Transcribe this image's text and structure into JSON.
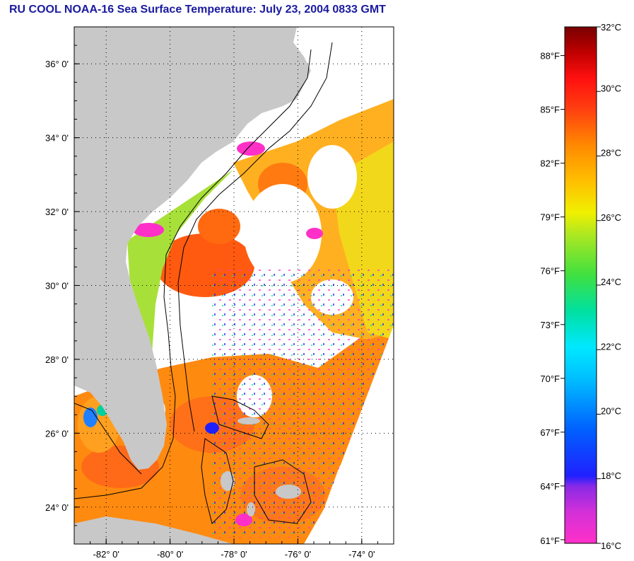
{
  "title": "RU COOL  NOAA-16  Sea Surface Temperature:  July 23, 2004 0833 GMT",
  "map": {
    "lon_range": [
      -83,
      -73
    ],
    "lat_range": [
      23,
      37
    ],
    "lat_ticks": [
      {
        "value": 36,
        "label": "36° 0'"
      },
      {
        "value": 34,
        "label": "34° 0'"
      },
      {
        "value": 32,
        "label": "32° 0'"
      },
      {
        "value": 30,
        "label": "30° 0'"
      },
      {
        "value": 28,
        "label": "28° 0'"
      },
      {
        "value": 26,
        "label": "26° 0'"
      },
      {
        "value": 24,
        "label": "24° 0'"
      }
    ],
    "lon_ticks": [
      {
        "value": -82,
        "label": "-82° 0'"
      },
      {
        "value": -80,
        "label": "-80° 0'"
      },
      {
        "value": -78,
        "label": "-78° 0'"
      },
      {
        "value": -76,
        "label": "-76° 0'"
      },
      {
        "value": -74,
        "label": "-74° 0'"
      }
    ],
    "colors": {
      "land": "#c8c8c8",
      "cloud": "#ffffff",
      "frame": "#000000"
    }
  },
  "colorbar": {
    "celsius_labels": [
      "32°C",
      "30°C",
      "28°C",
      "26°C",
      "24°C",
      "22°C",
      "20°C",
      "18°C",
      "16°C"
    ],
    "fahrenheit_labels": [
      "88°F",
      "85°F",
      "82°F",
      "79°F",
      "76°F",
      "73°F",
      "70°F",
      "67°F",
      "64°F",
      "61°F"
    ],
    "range_c": [
      16,
      32
    ],
    "colors": [
      "#ff30c8",
      "#8a2ae6",
      "#2020ff",
      "#00a0ff",
      "#00e8ff",
      "#00e080",
      "#a0e830",
      "#f0f000",
      "#ffb000",
      "#ff6a10",
      "#ff1010",
      "#c00000",
      "#800000"
    ]
  }
}
